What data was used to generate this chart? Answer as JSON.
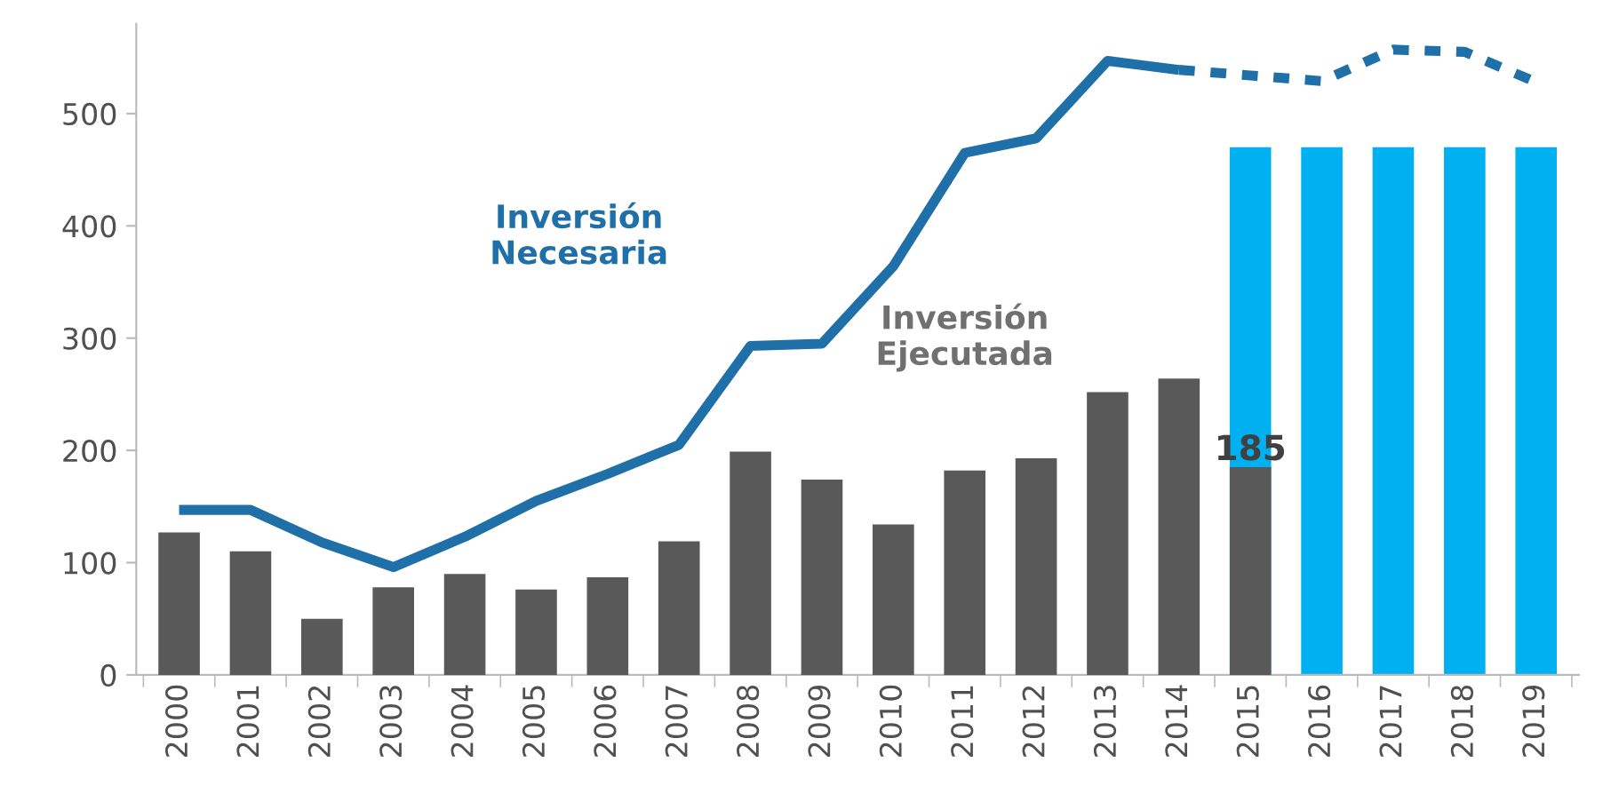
{
  "chart_data": {
    "type": "bar",
    "categories": [
      "2000",
      "2001",
      "2002",
      "2003",
      "2004",
      "2005",
      "2006",
      "2007",
      "2008",
      "2009",
      "2010",
      "2011",
      "2012",
      "2013",
      "2014",
      "2015",
      "2016",
      "2017",
      "2018",
      "2019"
    ],
    "series": [
      {
        "color": "#00b0f0",
        "values": [
          null,
          null,
          null,
          null,
          null,
          null,
          null,
          null,
          null,
          null,
          null,
          null,
          null,
          null,
          null,
          470,
          470,
          470,
          470,
          470
        ]
      },
      {
        "name": "Inversión Ejecutada",
        "color": "#595959",
        "values": [
          127,
          110,
          50,
          78,
          90,
          76,
          87,
          119,
          199,
          174,
          134,
          182,
          193,
          252,
          264,
          185,
          null,
          null,
          null,
          null
        ],
        "value_labels": [
          null,
          null,
          null,
          null,
          null,
          null,
          null,
          null,
          null,
          null,
          null,
          null,
          null,
          null,
          null,
          "185",
          null,
          null,
          null,
          null
        ]
      },
      {
        "type": "line",
        "name": "Inversión Necesaria",
        "color": "#1f6fa8",
        "line_style": "solid",
        "values": [
          147,
          147,
          118,
          96,
          123,
          155,
          179,
          205,
          293,
          295,
          364,
          465,
          478,
          547,
          539,
          null,
          null,
          null,
          null,
          null
        ]
      },
      {
        "type": "line",
        "color": "#1f6fa8",
        "line_style": "dashed",
        "values": [
          null,
          null,
          null,
          null,
          null,
          null,
          null,
          null,
          null,
          null,
          null,
          null,
          null,
          null,
          539,
          534,
          529,
          557,
          555,
          528
        ]
      }
    ],
    "ylim": [
      0,
      580
    ],
    "yticks": [
      0,
      100,
      200,
      300,
      400,
      500
    ],
    "grid": false,
    "legend": false
  }
}
